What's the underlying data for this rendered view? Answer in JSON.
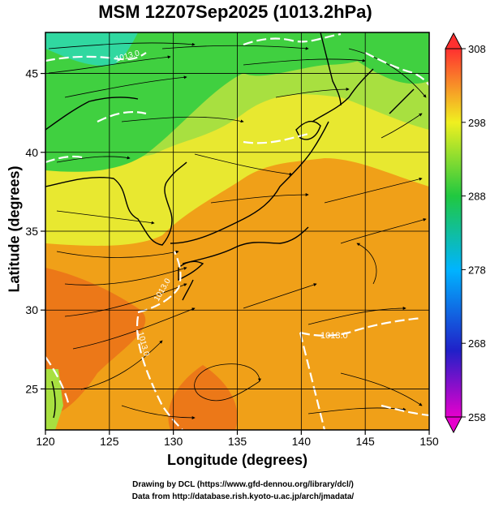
{
  "title": "MSM 12Z07Sep2025 (1013.2hPa)",
  "x_axis": {
    "label": "Longitude (degrees)",
    "min": 120,
    "max": 150,
    "ticks": [
      120,
      125,
      130,
      135,
      140,
      145,
      150
    ]
  },
  "y_axis": {
    "label": "Latitude  (degrees)",
    "min": 22.4,
    "max": 47.6,
    "ticks": [
      25,
      30,
      35,
      40,
      45
    ]
  },
  "colorbar": {
    "min": 258,
    "max": 308,
    "ticks": [
      258,
      268,
      278,
      288,
      298,
      308
    ],
    "colors": [
      "#e600cc",
      "#2020c8",
      "#00b4ff",
      "#20c840",
      "#f0f020",
      "#ff3030"
    ]
  },
  "contour_labels": [
    "1013.0",
    "1013.0",
    "1013.0",
    "1013.0"
  ],
  "credits": {
    "line1": "Drawing by DCL (https://www.gfd-dennou.org/library/dcl/)",
    "line2": "Data from http://database.rish.kyoto-u.ac.jp/arch/jmadata/"
  },
  "field_colors": {
    "green": "#40d040",
    "yellowgreen": "#a8e040",
    "yellow": "#e8e830",
    "orange": "#f0a018",
    "orangered": "#ec7818",
    "cyan": "#30d8a0"
  }
}
